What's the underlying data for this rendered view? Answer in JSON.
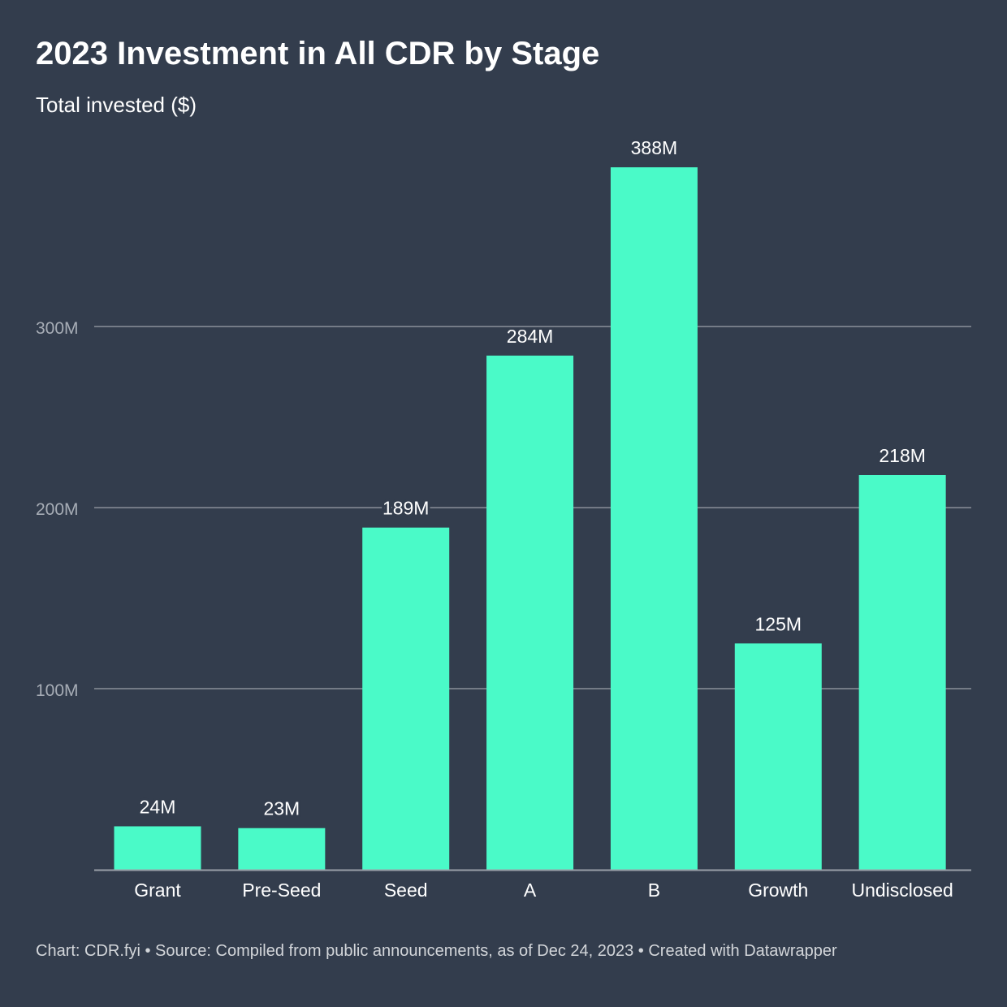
{
  "chart_data": {
    "type": "bar",
    "title": "2023 Investment in All CDR by Stage",
    "subtitle": "Total invested ($)",
    "categories": [
      "Grant",
      "Pre-Seed",
      "Seed",
      "A",
      "B",
      "Growth",
      "Undisclosed"
    ],
    "values": [
      24,
      23,
      189,
      284,
      388,
      125,
      218
    ],
    "value_labels": [
      "24M",
      "23M",
      "189M",
      "284M",
      "388M",
      "125M",
      "218M"
    ],
    "ylim": [
      0,
      388
    ],
    "yticks": [
      100,
      200,
      300
    ],
    "ytick_labels": [
      "100M",
      "200M",
      "300M"
    ],
    "grid": true,
    "legend": "none",
    "colors": {
      "background": "#333d4d",
      "bar": "#4afac8",
      "grid": "#8a909a",
      "tick_label": "#a7adb6",
      "axis": "#9aa0a8"
    }
  },
  "footer": "Chart: CDR.fyi • Source: Compiled from public announcements, as of Dec 24, 2023 • Created with Datawrapper"
}
